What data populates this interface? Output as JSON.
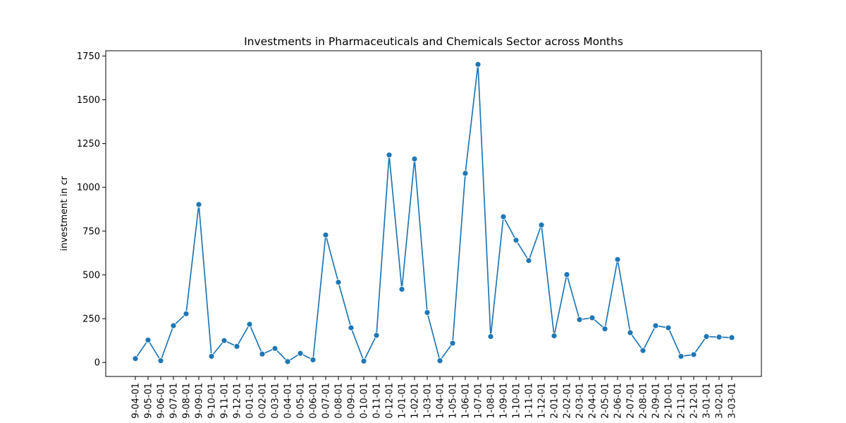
{
  "chart_data": {
    "type": "line",
    "title": "Investments in Pharmaceuticals and Chemicals Sector across Months",
    "xlabel": "",
    "ylabel": "investment in cr",
    "ylim": [
      -80,
      1780
    ],
    "yticks": [
      0,
      250,
      500,
      750,
      1000,
      1250,
      1500,
      1750
    ],
    "grid": false,
    "legend": "none",
    "colors": {
      "line": "#1f77b4",
      "marker": "#1f77b4",
      "axes": "#000000",
      "background": "#ffffff"
    },
    "categories": [
      "9-04-01",
      "9-05-01",
      "9-06-01",
      "9-07-01",
      "9-08-01",
      "9-09-01",
      "9-10-01",
      "9-11-01",
      "9-12-01",
      "0-01-01",
      "0-02-01",
      "0-03-01",
      "0-04-01",
      "0-05-01",
      "0-06-01",
      "0-07-01",
      "0-08-01",
      "0-09-01",
      "0-10-01",
      "0-11-01",
      "0-12-01",
      "1-01-01",
      "1-02-01",
      "1-03-01",
      "1-04-01",
      "1-05-01",
      "1-06-01",
      "1-07-01",
      "1-08-01",
      "1-09-01",
      "1-10-01",
      "1-11-01",
      "1-12-01",
      "2-01-01",
      "2-02-01",
      "2-03-01",
      "2-04-01",
      "2-05-01",
      "2-06-01",
      "2-07-01",
      "2-08-01",
      "2-09-01",
      "2-10-01",
      "2-11-01",
      "2-12-01",
      "3-01-01",
      "3-02-01",
      "3-03-01"
    ],
    "series": [
      {
        "values": [
          22,
          128,
          10,
          210,
          278,
          902,
          35,
          125,
          92,
          218,
          48,
          80,
          5,
          52,
          15,
          728,
          458,
          198,
          8,
          155,
          1185,
          418,
          1162,
          285,
          10,
          110,
          1080,
          1702,
          148,
          832,
          698,
          582,
          785,
          152,
          502,
          245,
          255,
          192,
          588,
          170,
          68,
          210,
          198,
          35,
          45,
          148,
          145,
          142
        ]
      }
    ]
  }
}
